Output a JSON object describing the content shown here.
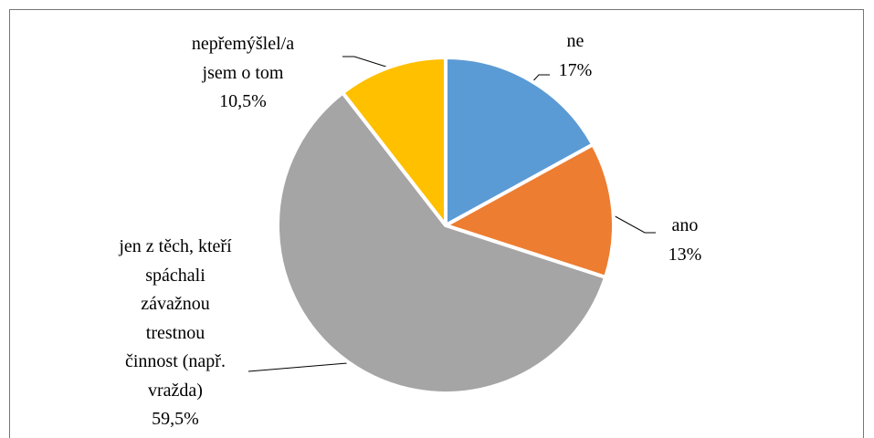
{
  "chart_data": {
    "type": "pie",
    "categories": [
      "ne",
      "ano",
      "jen z těch, kteří\nspáchali\nzávažnou\ntrestnou\nčinnost (např.\nvražda)",
      "nepřemýšlel/a\njsem o tom"
    ],
    "values": [
      17,
      13,
      59.5,
      10.5
    ],
    "value_labels": [
      "17%",
      "13%",
      "59,5%",
      "10,5%"
    ],
    "colors": [
      "#5b9bd5",
      "#ed7d31",
      "#a5a5a5",
      "#ffc000"
    ]
  }
}
